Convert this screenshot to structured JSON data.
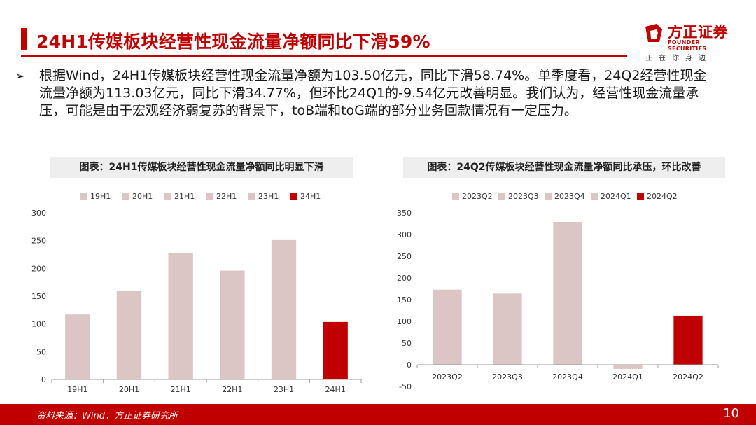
{
  "header": {
    "title": "24H1传媒板块经营性现金流量净额同比下滑59%"
  },
  "logo": {
    "name_cn": "方正证券",
    "name_en": "FOUNDER SECURITIES",
    "slogan": "正在你身边",
    "brand_color": "#c00000"
  },
  "bullet": {
    "icon": "arrow-bullet-icon",
    "text": "根据Wind，24H1传媒板块经营性现金流量净额为103.50亿元，同比下滑58.74%。单季度看，24Q2经营性现金流量净额为113.03亿元，同比下滑34.77%，但环比24Q1的-9.54亿元改善明显。我们认为，经营性现金流量承压，可能是由于宏观经济弱复苏的背景下，toB端和toG端的部分业务回款情况有一定压力。"
  },
  "chart_data": [
    {
      "type": "bar",
      "title": "图表：24H1传媒板块经营性现金流量净额同比明显下滑",
      "categories": [
        "19H1",
        "20H1",
        "21H1",
        "22H1",
        "23H1",
        "24H1"
      ],
      "values": [
        117,
        160,
        227,
        196,
        251,
        103.5
      ],
      "legend": [
        "19H1",
        "20H1",
        "21H1",
        "22H1",
        "23H1",
        "24H1"
      ],
      "legend_position": "top",
      "ylim": [
        0,
        300
      ],
      "yticks": [
        "0",
        "50",
        "100",
        "150",
        "200",
        "250",
        "300"
      ],
      "colors": [
        "#dcc5c5",
        "#dcc5c5",
        "#dcc5c5",
        "#dcc5c5",
        "#dcc5c5",
        "#c00000"
      ],
      "xlabel": "",
      "ylabel": ""
    },
    {
      "type": "bar",
      "title": "图表：24Q2传媒板块经营性现金流量净额同比承压，环比改善",
      "categories": [
        "2023Q2",
        "2023Q3",
        "2023Q4",
        "2024Q1",
        "2024Q2"
      ],
      "values": [
        173,
        164,
        329,
        -9.54,
        113.03
      ],
      "legend": [
        "2023Q2",
        "2023Q3",
        "2023Q4",
        "2024Q1",
        "2024Q2"
      ],
      "legend_position": "top",
      "ylim": [
        -50,
        350
      ],
      "yticks": [
        "-50",
        "0",
        "50",
        "100",
        "150",
        "200",
        "250",
        "300",
        "350"
      ],
      "colors": [
        "#dcc5c5",
        "#dcc5c5",
        "#dcc5c5",
        "#dcc5c5",
        "#c00000"
      ],
      "xlabel": "",
      "ylabel": ""
    }
  ],
  "footer": {
    "source": "资料来源：Wind，方正证券研究所",
    "page_number": "10"
  }
}
